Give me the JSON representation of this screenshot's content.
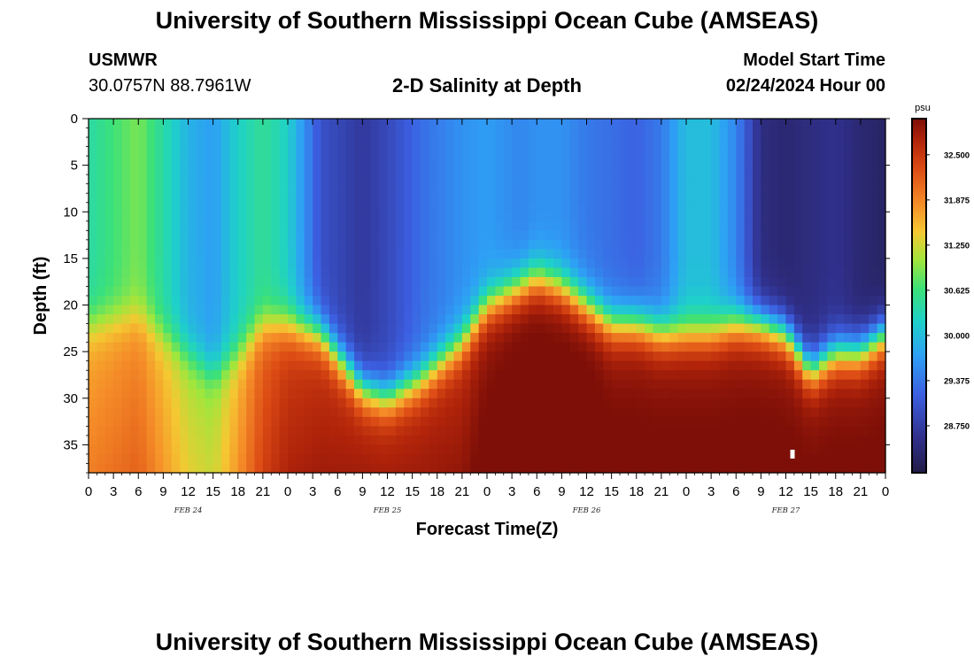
{
  "page": {
    "title": "University of Southern Mississippi Ocean Cube (AMSEAS)",
    "footer_title": "University of Southern Mississippi Ocean Cube (AMSEAS)"
  },
  "station": {
    "id": "USMWR",
    "coords": "30.0757N  88.7961W"
  },
  "plot_title": "2-D Salinity at Depth",
  "model_start": {
    "label": "Model Start Time",
    "value": "02/24/2024 Hour 00"
  },
  "chart_data": {
    "type": "heatmap",
    "title": "2-D Salinity at Depth",
    "xlabel": "Forecast Time(Z)",
    "ylabel": "Depth (ft)",
    "x_range_hours": [
      0,
      96
    ],
    "x_tick_labels": [
      "0",
      "3",
      "6",
      "9",
      "12",
      "15",
      "18",
      "21",
      "0",
      "3",
      "6",
      "9",
      "12",
      "15",
      "18",
      "21",
      "0",
      "3",
      "6",
      "9",
      "12",
      "15",
      "18",
      "21",
      "0",
      "3",
      "6",
      "9",
      "12",
      "15",
      "18",
      "21",
      "0"
    ],
    "day_labels": [
      {
        "text": "FEB 24",
        "hour": 12
      },
      {
        "text": "FEB 25",
        "hour": 36
      },
      {
        "text": "FEB 26",
        "hour": 60
      },
      {
        "text": "FEB 27",
        "hour": 84
      }
    ],
    "y_range_ft": [
      0,
      38
    ],
    "y_ticks": [
      0,
      5,
      10,
      15,
      20,
      25,
      30,
      35
    ],
    "colorbar": {
      "unit": "psu",
      "min": 28.1,
      "max": 33.0,
      "tick_values": [
        32.5,
        31.875,
        31.25,
        30.625,
        30.0,
        29.375,
        28.75
      ],
      "tick_labels": [
        "32.500",
        "31.875",
        "31.250",
        "30.625",
        "30.000",
        "29.375",
        "28.750"
      ]
    },
    "hours": [
      0,
      6,
      12,
      15,
      18,
      21,
      24,
      28,
      33,
      36,
      40,
      45,
      48,
      52,
      54,
      57,
      60,
      63,
      66,
      69,
      72,
      75,
      78,
      81,
      84,
      87,
      90,
      93,
      96
    ],
    "surface_salinity": [
      30.4,
      30.9,
      29.9,
      29.7,
      30.2,
      30.5,
      30.2,
      29.0,
      28.7,
      28.9,
      29.3,
      29.6,
      29.7,
      29.5,
      29.6,
      29.6,
      29.4,
      29.3,
      29.2,
      29.4,
      30.0,
      30.0,
      29.5,
      28.5,
      28.4,
      28.5,
      28.6,
      28.4,
      28.3
    ],
    "bottom_salinity": [
      31.6,
      31.8,
      31.1,
      31.0,
      31.5,
      32.1,
      32.4,
      32.5,
      32.6,
      32.6,
      32.6,
      32.6,
      32.8,
      32.9,
      32.9,
      32.9,
      32.9,
      32.8,
      32.8,
      32.8,
      32.8,
      32.8,
      32.8,
      32.8,
      32.8,
      32.8,
      32.8,
      32.8,
      32.8
    ],
    "halocline_depth_ft": [
      22,
      21,
      25,
      27,
      25,
      22,
      22,
      23,
      29,
      30,
      28,
      24,
      20,
      18,
      17,
      18,
      20,
      22,
      22,
      23,
      23,
      23,
      22,
      22,
      23,
      27,
      25,
      25,
      23
    ],
    "marker": {
      "hour": 84.8,
      "depth_ft": 36
    }
  }
}
